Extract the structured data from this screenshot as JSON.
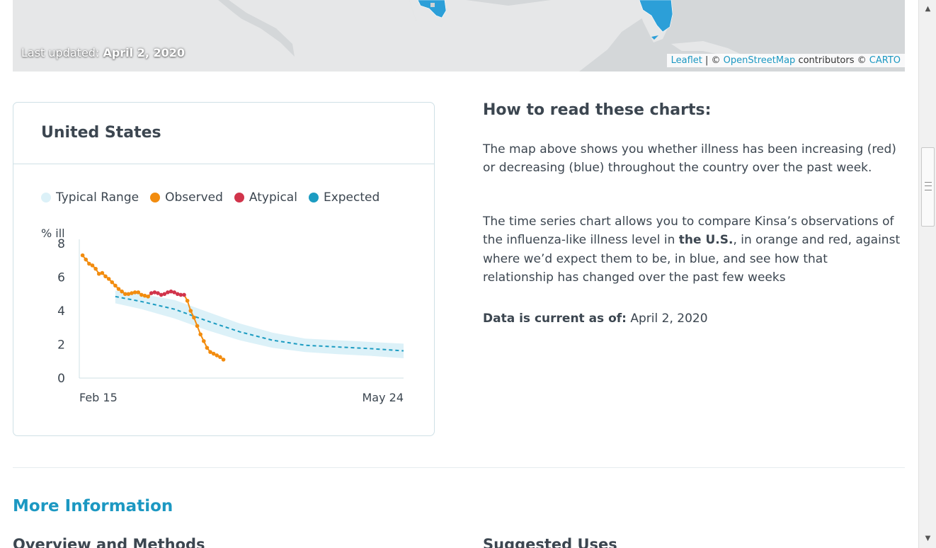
{
  "map": {
    "last_updated_label": "Last updated:",
    "last_updated_date": "April 2, 2020",
    "attribution": {
      "leaflet": "Leaflet",
      "separator": " | © ",
      "osm": "OpenStreetMap",
      "contributors": " contributors © ",
      "carto": "CARTO"
    },
    "colors": {
      "land": "#e4e5e6",
      "water": "#d4d7d9",
      "decreasing": "#1e9fd6"
    }
  },
  "card": {
    "title": "United States",
    "legend": [
      {
        "label": "Typical Range",
        "color": "#dcf1f8"
      },
      {
        "label": "Observed",
        "color": "#f28c0f"
      },
      {
        "label": "Atypical",
        "color": "#d1344b"
      },
      {
        "label": "Expected",
        "color": "#1c9cc2"
      }
    ]
  },
  "chart_data": {
    "type": "line",
    "ylabel": "% ill",
    "ylim": [
      0,
      8
    ],
    "yticks": [
      0,
      2,
      4,
      6,
      8
    ],
    "xlim": [
      "2020-02-15",
      "2020-05-24"
    ],
    "xticks": [
      "Feb 15",
      "May 24"
    ],
    "grid": false,
    "series": [
      {
        "name": "Observed",
        "color": "#f28c0f",
        "atypical_color": "#d1344b",
        "start_date": "2020-02-16",
        "values": [
          7.3,
          7.05,
          6.8,
          6.7,
          6.5,
          6.2,
          6.25,
          6.05,
          5.9,
          5.7,
          5.5,
          5.3,
          5.15,
          5.0,
          5.0,
          5.05,
          5.1,
          5.1,
          4.95,
          4.9,
          4.85,
          5.05,
          5.1,
          5.05,
          4.95,
          5.0,
          5.1,
          5.15,
          5.1,
          5.0,
          4.95,
          4.95,
          4.6,
          4.0,
          3.6,
          3.1,
          2.6,
          2.2,
          1.8,
          1.55,
          1.45,
          1.35,
          1.25,
          1.1
        ],
        "atypical": [
          false,
          false,
          false,
          false,
          false,
          false,
          false,
          false,
          false,
          false,
          false,
          false,
          false,
          false,
          false,
          false,
          false,
          false,
          false,
          false,
          false,
          true,
          true,
          true,
          true,
          true,
          true,
          true,
          true,
          true,
          true,
          true,
          false,
          false,
          false,
          false,
          false,
          false,
          false,
          false,
          false,
          false,
          false,
          false
        ]
      },
      {
        "name": "Expected",
        "color": "#1c9cc2",
        "x": [
          "2020-02-26",
          "2020-03-05",
          "2020-03-15",
          "2020-03-25",
          "2020-04-04",
          "2020-04-14",
          "2020-04-24",
          "2020-05-04",
          "2020-05-14",
          "2020-05-24"
        ],
        "values": [
          4.85,
          4.55,
          4.1,
          3.4,
          2.75,
          2.25,
          1.95,
          1.85,
          1.75,
          1.62
        ],
        "range_low": [
          4.45,
          4.1,
          3.55,
          2.85,
          2.25,
          1.8,
          1.55,
          1.42,
          1.32,
          1.18
        ],
        "range_high": [
          5.2,
          5.0,
          4.65,
          3.95,
          3.25,
          2.7,
          2.35,
          2.25,
          2.15,
          2.05
        ]
      }
    ]
  },
  "info": {
    "title": "How to read these charts:",
    "p1": "The map above shows you whether illness has been increasing (red) or decreasing (blue) throughout the country over the past week.",
    "p2_before": "The time series chart allows you to compare Kinsa’s observations of the influenza-like illness level in ",
    "p2_bold": "the U.S.",
    "p2_after": ", in orange and red, against where we’d expect them to be, in blue, and see how that relationship has changed over the past few weeks",
    "current_label": "Data is current as of:",
    "current_value": " April 2, 2020"
  },
  "more": {
    "title": "More Information",
    "overview": "Overview and Methods",
    "suggested": "Suggested Uses"
  },
  "scrollbar": {
    "up": "▲",
    "down": "▼"
  }
}
